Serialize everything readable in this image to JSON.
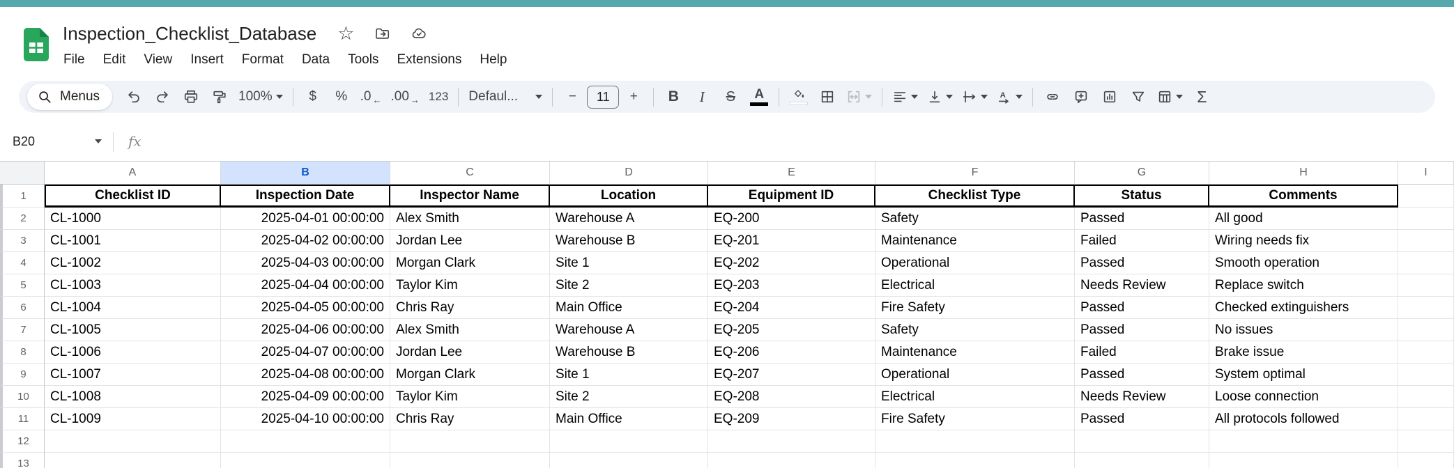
{
  "app": {
    "title": "Inspection_Checklist_Database",
    "menu_items": [
      "File",
      "Edit",
      "View",
      "Insert",
      "Format",
      "Data",
      "Tools",
      "Extensions",
      "Help"
    ]
  },
  "toolbar": {
    "menus_label": "Menus",
    "zoom_value": "100%",
    "currency_label": "$",
    "percent_label": "%",
    "decrease_decimal_label": ".0",
    "decrease_decimal_arrow": "←",
    "increase_decimal_label": ".00",
    "increase_decimal_arrow": "→",
    "more_formats_label": "123",
    "font_family_value": "Defaul...",
    "font_size_value": "11",
    "decrease_font_label": "−",
    "increase_font_label": "+",
    "bold_label": "B",
    "italic_label": "I",
    "strikethrough_label": "S",
    "text_color_label": "A",
    "functions_label": "Σ"
  },
  "formula_bar": {
    "name_box": "B20",
    "fx_label": "fx",
    "value": ""
  },
  "grid": {
    "selected_column": "B",
    "column_letters": [
      "A",
      "B",
      "C",
      "D",
      "E",
      "F",
      "G",
      "H",
      "I"
    ],
    "column_headers": [
      "Checklist ID",
      "Inspection Date",
      "Inspector Name",
      "Location",
      "Equipment ID",
      "Checklist Type",
      "Status",
      "Comments"
    ],
    "rows": [
      [
        "CL-1000",
        "2025-04-01 00:00:00",
        "Alex Smith",
        "Warehouse A",
        "EQ-200",
        "Safety",
        "Passed",
        "All good"
      ],
      [
        "CL-1001",
        "2025-04-02 00:00:00",
        "Jordan Lee",
        "Warehouse B",
        "EQ-201",
        "Maintenance",
        "Failed",
        "Wiring needs fix"
      ],
      [
        "CL-1002",
        "2025-04-03 00:00:00",
        "Morgan Clark",
        "Site 1",
        "EQ-202",
        "Operational",
        "Passed",
        "Smooth operation"
      ],
      [
        "CL-1003",
        "2025-04-04 00:00:00",
        "Taylor Kim",
        "Site 2",
        "EQ-203",
        "Electrical",
        "Needs Review",
        "Replace switch"
      ],
      [
        "CL-1004",
        "2025-04-05 00:00:00",
        "Chris Ray",
        "Main Office",
        "EQ-204",
        "Fire Safety",
        "Passed",
        "Checked extinguishers"
      ],
      [
        "CL-1005",
        "2025-04-06 00:00:00",
        "Alex Smith",
        "Warehouse A",
        "EQ-205",
        "Safety",
        "Passed",
        "No issues"
      ],
      [
        "CL-1006",
        "2025-04-07 00:00:00",
        "Jordan Lee",
        "Warehouse B",
        "EQ-206",
        "Maintenance",
        "Failed",
        "Brake issue"
      ],
      [
        "CL-1007",
        "2025-04-08 00:00:00",
        "Morgan Clark",
        "Site 1",
        "EQ-207",
        "Operational",
        "Passed",
        "System optimal"
      ],
      [
        "CL-1008",
        "2025-04-09 00:00:00",
        "Taylor Kim",
        "Site 2",
        "EQ-208",
        "Electrical",
        "Needs Review",
        "Loose connection"
      ],
      [
        "CL-1009",
        "2025-04-10 00:00:00",
        "Chris Ray",
        "Main Office",
        "EQ-209",
        "Fire Safety",
        "Passed",
        "All protocols followed"
      ]
    ],
    "empty_row_numbers": [
      12,
      13
    ],
    "date_column_index": 1
  },
  "colors": {
    "top_bar": "#55a9ad",
    "toolbar_bg": "#f0f4f9",
    "logo_green": "#27a65c",
    "logo_fold": "#1c8246",
    "selected_col_bg": "#d3e3fd",
    "selected_col_text": "#0b57d0"
  }
}
